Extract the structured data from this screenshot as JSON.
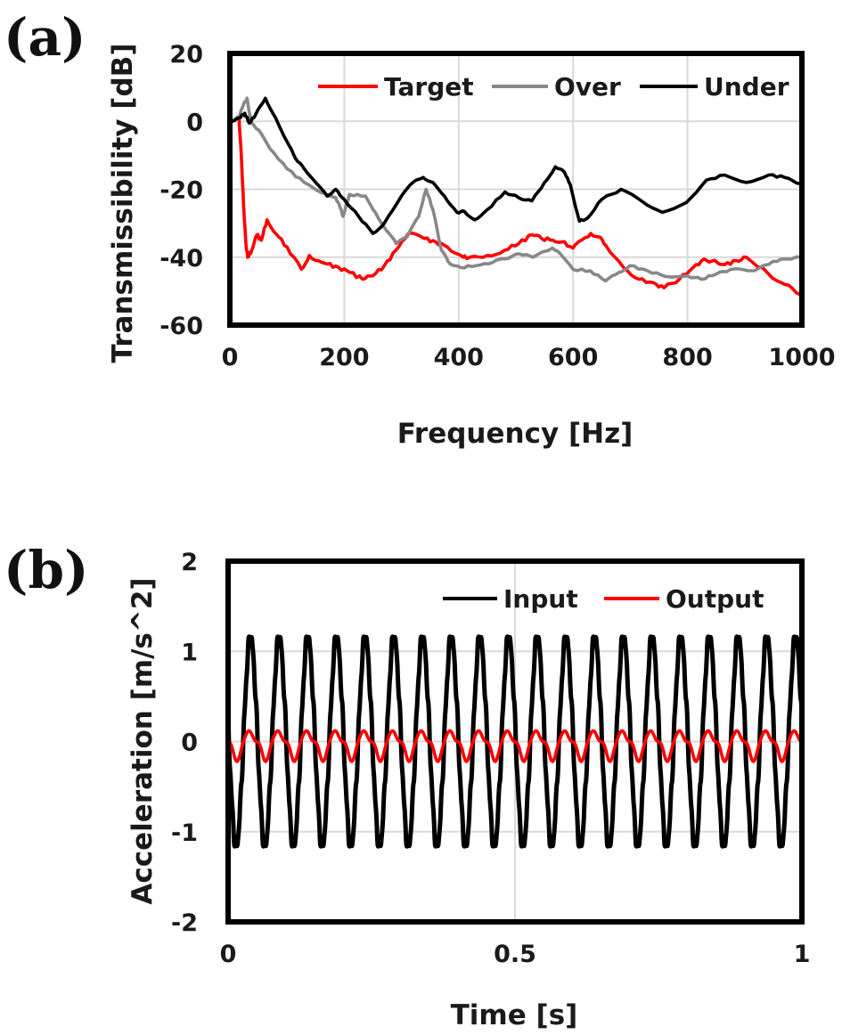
{
  "chart_data": [
    {
      "panel_label": "(a)",
      "type": "line",
      "xlabel": "Frequency [Hz]",
      "ylabel": "Transmissibility [dB]",
      "xlim": [
        0,
        1000
      ],
      "ylim": [
        -60,
        20
      ],
      "xticks": [
        0,
        200,
        400,
        600,
        800,
        1000
      ],
      "yticks": [
        20,
        0,
        -20,
        -40,
        -60
      ],
      "xtick_labels": [
        "0",
        "200",
        "400",
        "600",
        "800",
        "1000"
      ],
      "ytick_labels": [
        "20",
        "0",
        "-20",
        "-40",
        "-60"
      ],
      "grid": true,
      "legend_position": "top-right",
      "series": [
        {
          "name": "Target",
          "color": "#ff0000",
          "x": [
            16,
            20,
            24,
            28,
            31,
            38,
            47,
            55,
            65,
            80,
            100,
            125,
            139,
            155,
            170,
            190,
            210,
            232,
            250,
            270,
            290,
            312,
            340,
            360,
            380,
            408,
            419,
            450,
            480,
            505,
            528,
            545,
            565,
            580,
            600,
            615,
            631,
            645,
            657,
            688,
            715,
            740,
            759,
            786,
            810,
            829,
            865,
            885,
            903,
            942,
            970,
            997
          ],
          "y": [
            0.8,
            -10,
            -25,
            -36,
            -40,
            -38,
            -33.4,
            -35,
            -29,
            -33,
            -37,
            -43.5,
            -39.5,
            -41,
            -42,
            -43,
            -44.5,
            -46.5,
            -45.5,
            -42.5,
            -38,
            -33,
            -34.5,
            -35.5,
            -37,
            -40,
            -40,
            -39.5,
            -38,
            -36,
            -33.4,
            -34.5,
            -35,
            -35.5,
            -37.3,
            -35,
            -33,
            -34,
            -36.5,
            -43,
            -46.5,
            -47.5,
            -49,
            -46.5,
            -43,
            -40.5,
            -42.2,
            -41,
            -40,
            -45,
            -48,
            -51
          ]
        },
        {
          "name": "Over",
          "color": "#888888",
          "x": [
            0,
            16,
            24,
            30,
            37,
            50,
            70,
            100,
            130,
            160,
            185,
            192,
            198,
            209,
            237,
            255,
            273,
            291,
            310,
            330,
            343,
            355,
            370,
            385,
            403,
            430,
            460,
            480,
            506,
            530,
            564,
            580,
            600,
            630,
            657,
            680,
            699,
            730,
            762,
            800,
            824,
            850,
            875,
            917,
            950,
            975,
            997
          ],
          "y": [
            0,
            1.5,
            5,
            6.8,
            -0.5,
            -2.5,
            -8,
            -14,
            -18,
            -21,
            -22.5,
            -25,
            -28,
            -21.5,
            -22,
            -27,
            -32,
            -36,
            -34,
            -28,
            -20,
            -26,
            -38,
            -42,
            -43,
            -42.5,
            -41.5,
            -40.5,
            -39,
            -40,
            -37.3,
            -39.5,
            -43.6,
            -44,
            -47,
            -44.5,
            -42.5,
            -44,
            -45.7,
            -45.5,
            -46.5,
            -45,
            -43.6,
            -44,
            -41.2,
            -40.5,
            -40
          ]
        },
        {
          "name": "Under",
          "color": "#000000",
          "x": [
            0,
            16,
            26,
            34,
            45,
            62,
            80,
            100,
            115,
            130,
            150,
            170,
            185,
            200,
            225,
            250,
            270,
            300,
            320,
            338,
            355,
            375,
            397,
            410,
            428,
            450,
            481,
            505,
            528,
            550,
            569,
            585,
            595,
            611,
            625,
            650,
            684,
            720,
            756,
            798,
            833,
            865,
            903,
            942,
            970,
            997
          ],
          "y": [
            0,
            1,
            2.4,
            -0.5,
            2,
            6.8,
            1,
            -6,
            -11,
            -14,
            -18,
            -22,
            -20,
            -23,
            -28,
            -33,
            -30,
            -22,
            -18,
            -16.5,
            -18,
            -22,
            -26.8,
            -26.5,
            -29,
            -26,
            -20.8,
            -22.5,
            -23.4,
            -18,
            -13.4,
            -15,
            -18.6,
            -29.4,
            -28.5,
            -23,
            -20,
            -23.5,
            -26.8,
            -23.9,
            -17.3,
            -15.8,
            -18,
            -15.8,
            -16.5,
            -18.4
          ]
        }
      ]
    },
    {
      "panel_label": "(b)",
      "type": "line",
      "xlabel": "Time [s]",
      "ylabel": "Acceleration [m/s^2]",
      "xlim": [
        0,
        1
      ],
      "ylim": [
        -2,
        2
      ],
      "xticks": [
        0,
        0.5,
        1
      ],
      "yticks": [
        2,
        1,
        0,
        -1,
        -2
      ],
      "xtick_labels": [
        "0",
        "0.5",
        "1"
      ],
      "ytick_labels": [
        "2",
        "1",
        "0",
        "-1",
        "-2"
      ],
      "grid": true,
      "legend_position": "top-right",
      "series": [
        {
          "name": "Input",
          "color": "#000000",
          "waveform": "sinusoid",
          "frequency_hz": 20,
          "amplitude": 1.15,
          "peak_max": 1.25,
          "trough_min": -1.17,
          "phase_rad": 2.95,
          "offset": 0
        },
        {
          "name": "Output",
          "color": "#ff0000",
          "waveform": "sinusoid",
          "frequency_hz": 20,
          "amplitude": 0.17,
          "peak_max": 0.15,
          "trough_min": -0.2,
          "phase_rad": 2.95,
          "offset": -0.03
        }
      ]
    }
  ]
}
